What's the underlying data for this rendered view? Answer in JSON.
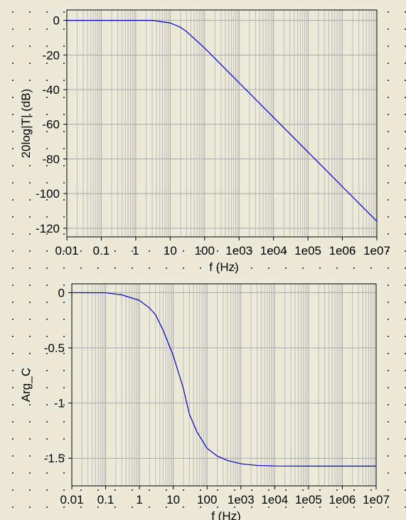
{
  "chart_data": [
    {
      "type": "line",
      "title": "",
      "xlabel": "f (Hz)",
      "ylabel": "20log|T| (dB)",
      "xscale": "log",
      "xlim": [
        0.01,
        10000000
      ],
      "ylim": [
        -125,
        6
      ],
      "grid": true,
      "x_tick_values": [
        0.01,
        0.1,
        1,
        10,
        100,
        1000,
        10000,
        100000,
        1000000,
        10000000
      ],
      "x_tick_labels": [
        "0.01",
        "0.1",
        "1",
        "10",
        "100",
        "1e03",
        "1e04",
        "1e05",
        "1e06",
        "1e07"
      ],
      "y_tick_values": [
        0,
        -20,
        -40,
        -60,
        -80,
        -100,
        -120
      ],
      "y_tick_labels": [
        "0",
        "-20",
        "-40",
        "-60",
        "-80",
        "-100",
        "-120"
      ],
      "series": [
        {
          "color": "#0000cc",
          "x": [
            0.01,
            0.1,
            1,
            3,
            10,
            20,
            30,
            50,
            100,
            200,
            500,
            1000,
            10000,
            100000,
            1000000,
            10000000
          ],
          "y": [
            0,
            0,
            0,
            0,
            -1.5,
            -4,
            -6.5,
            -10.5,
            -16,
            -22,
            -30,
            -36,
            -56,
            -76,
            -96,
            -116
          ]
        }
      ]
    },
    {
      "type": "line",
      "title": "",
      "xlabel": "f (Hz)",
      "ylabel": "Arg_C",
      "xscale": "log",
      "xlim": [
        0.01,
        10000000
      ],
      "ylim": [
        -1.75,
        0.08
      ],
      "grid": true,
      "x_tick_values": [
        0.01,
        0.1,
        1,
        10,
        100,
        1000,
        10000,
        100000,
        1000000,
        10000000
      ],
      "x_tick_labels": [
        "0.01",
        "0.1",
        "1",
        "10",
        "100",
        "1e03",
        "1e04",
        "1e05",
        "1e06",
        "1e07"
      ],
      "y_tick_values": [
        0,
        -0.5,
        -1,
        -1.5
      ],
      "y_tick_labels": [
        "0",
        "-0.5",
        "-1",
        "-1.5"
      ],
      "series": [
        {
          "color": "#0000cc",
          "x": [
            0.01,
            0.1,
            0.3,
            1,
            2,
            3,
            5,
            10,
            20,
            30,
            50,
            100,
            200,
            400,
            1000,
            3000,
            10000,
            100000,
            1000000,
            10000000
          ],
          "y": [
            0,
            -0.001,
            -0.02,
            -0.07,
            -0.14,
            -0.2,
            -0.34,
            -0.57,
            -0.87,
            -1.1,
            -1.26,
            -1.41,
            -1.48,
            -1.52,
            -1.55,
            -1.565,
            -1.57,
            -1.571,
            -1.571,
            -1.571
          ]
        }
      ]
    }
  ]
}
